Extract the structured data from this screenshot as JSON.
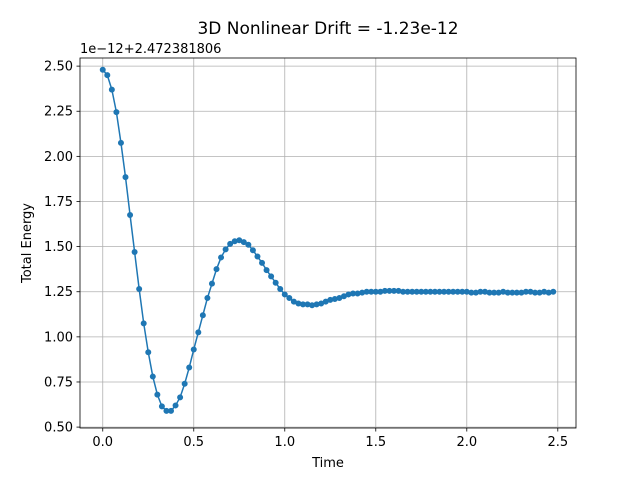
{
  "chart_data": {
    "type": "line",
    "title": "3D Nonlinear Drift = -1.23e-12",
    "xlabel": "Time",
    "ylabel": "Total Energy",
    "y_offset_text": "1e−12+2.472381806",
    "xlim": [
      -0.125,
      2.6
    ],
    "ylim": [
      0.495,
      2.545
    ],
    "xticks": [
      0.0,
      0.5,
      1.0,
      1.5,
      2.0,
      2.5
    ],
    "xtick_labels": [
      "0.0",
      "0.5",
      "1.0",
      "1.5",
      "2.0",
      "2.5"
    ],
    "yticks": [
      0.5,
      0.75,
      1.0,
      1.25,
      1.5,
      1.75,
      2.0,
      2.25,
      2.5
    ],
    "ytick_labels": [
      "0.50",
      "0.75",
      "1.00",
      "1.25",
      "1.50",
      "1.75",
      "2.00",
      "2.25",
      "2.50"
    ],
    "grid": true,
    "series": [
      {
        "color": "#1f77b4",
        "marker": "circle",
        "x": [
          0.0,
          0.025,
          0.05,
          0.075,
          0.1,
          0.125,
          0.15,
          0.175,
          0.2,
          0.225,
          0.25,
          0.275,
          0.3,
          0.325,
          0.35,
          0.375,
          0.4,
          0.425,
          0.45,
          0.475,
          0.5,
          0.525,
          0.55,
          0.575,
          0.6,
          0.625,
          0.65,
          0.675,
          0.7,
          0.725,
          0.75,
          0.775,
          0.8,
          0.825,
          0.85,
          0.875,
          0.9,
          0.925,
          0.95,
          0.975,
          1.0,
          1.025,
          1.05,
          1.075,
          1.1,
          1.125,
          1.15,
          1.175,
          1.2,
          1.225,
          1.25,
          1.275,
          1.3,
          1.325,
          1.35,
          1.375,
          1.4,
          1.425,
          1.45,
          1.475,
          1.5,
          1.525,
          1.55,
          1.575,
          1.6,
          1.625,
          1.65,
          1.675,
          1.7,
          1.725,
          1.75,
          1.775,
          1.8,
          1.825,
          1.85,
          1.875,
          1.9,
          1.925,
          1.95,
          1.975,
          2.0,
          2.025,
          2.05,
          2.075,
          2.1,
          2.125,
          2.15,
          2.175,
          2.2,
          2.225,
          2.25,
          2.275,
          2.3,
          2.325,
          2.35,
          2.375,
          2.4,
          2.425,
          2.45,
          2.475
        ],
        "values": [
          2.48,
          2.45,
          2.37,
          2.245,
          2.075,
          1.885,
          1.675,
          1.47,
          1.265,
          1.075,
          0.915,
          0.78,
          0.68,
          0.615,
          0.59,
          0.59,
          0.62,
          0.665,
          0.74,
          0.83,
          0.93,
          1.025,
          1.12,
          1.215,
          1.295,
          1.375,
          1.44,
          1.485,
          1.515,
          1.53,
          1.535,
          1.525,
          1.51,
          1.48,
          1.445,
          1.41,
          1.37,
          1.335,
          1.3,
          1.265,
          1.235,
          1.215,
          1.195,
          1.185,
          1.18,
          1.18,
          1.175,
          1.18,
          1.185,
          1.195,
          1.205,
          1.21,
          1.215,
          1.225,
          1.235,
          1.24,
          1.24,
          1.245,
          1.25,
          1.25,
          1.25,
          1.25,
          1.255,
          1.255,
          1.255,
          1.255,
          1.25,
          1.25,
          1.25,
          1.25,
          1.25,
          1.25,
          1.25,
          1.25,
          1.25,
          1.25,
          1.25,
          1.25,
          1.25,
          1.25,
          1.25,
          1.245,
          1.245,
          1.25,
          1.25,
          1.245,
          1.245,
          1.245,
          1.25,
          1.245,
          1.245,
          1.245,
          1.245,
          1.25,
          1.25,
          1.245,
          1.245,
          1.25,
          1.245,
          1.25
        ]
      }
    ]
  }
}
